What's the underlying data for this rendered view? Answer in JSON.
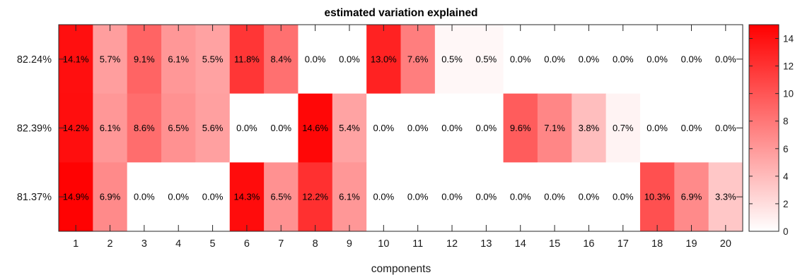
{
  "chart_data": {
    "type": "heatmap",
    "title": "estimated variation explained",
    "xlabel": "components",
    "ylabel": "",
    "x_categories": [
      "1",
      "2",
      "3",
      "4",
      "5",
      "6",
      "7",
      "8",
      "9",
      "10",
      "11",
      "12",
      "13",
      "14",
      "15",
      "16",
      "17",
      "18",
      "19",
      "20"
    ],
    "y_categories": [
      "82.24%",
      "82.39%",
      "81.37%"
    ],
    "values": [
      [
        14.1,
        5.7,
        9.1,
        6.1,
        5.5,
        11.8,
        8.4,
        0.0,
        0.0,
        13.0,
        7.6,
        0.5,
        0.5,
        0.0,
        0.0,
        0.0,
        0.0,
        0.0,
        0.0,
        0.0
      ],
      [
        14.2,
        6.1,
        8.6,
        6.5,
        5.6,
        0.0,
        0.0,
        14.6,
        5.4,
        0.0,
        0.0,
        0.0,
        0.0,
        9.6,
        7.1,
        3.8,
        0.7,
        0.0,
        0.0,
        0.0
      ],
      [
        14.9,
        6.9,
        0.0,
        0.0,
        0.0,
        14.3,
        6.5,
        12.2,
        6.1,
        0.0,
        0.0,
        0.0,
        0.0,
        0.0,
        0.0,
        0.0,
        0.0,
        10.3,
        6.9,
        3.3
      ]
    ],
    "cell_labels": [
      [
        "14.1%",
        "5.7%",
        "9.1%",
        "6.1%",
        "5.5%",
        "11.8%",
        "8.4%",
        "0.0%",
        "0.0%",
        "13.0%",
        "7.6%",
        "0.5%",
        "0.5%",
        "0.0%",
        "0.0%",
        "0.0%",
        "0.0%",
        "0.0%",
        "0.0%",
        "0.0%"
      ],
      [
        "14.2%",
        "6.1%",
        "8.6%",
        "6.5%",
        "5.6%",
        "0.0%",
        "0.0%",
        "14.6%",
        "5.4%",
        "0.0%",
        "0.0%",
        "0.0%",
        "0.0%",
        "9.6%",
        "7.1%",
        "3.8%",
        "0.7%",
        "0.0%",
        "0.0%",
        "0.0%"
      ],
      [
        "14.9%",
        "6.9%",
        "0.0%",
        "0.0%",
        "0.0%",
        "14.3%",
        "6.5%",
        "12.2%",
        "6.1%",
        "0.0%",
        "0.0%",
        "0.0%",
        "0.0%",
        "0.0%",
        "0.0%",
        "0.0%",
        "0.0%",
        "10.3%",
        "6.9%",
        "3.3%"
      ]
    ],
    "colormap": {
      "low": "#ffffff",
      "high": "#ff0000"
    },
    "color_range": [
      0,
      15
    ],
    "colorbar": {
      "ticks": [
        0,
        2,
        4,
        6,
        8,
        10,
        12,
        14
      ],
      "tick_labels": [
        "0",
        "2",
        "4",
        "6",
        "8",
        "10",
        "12",
        "14"
      ]
    }
  }
}
